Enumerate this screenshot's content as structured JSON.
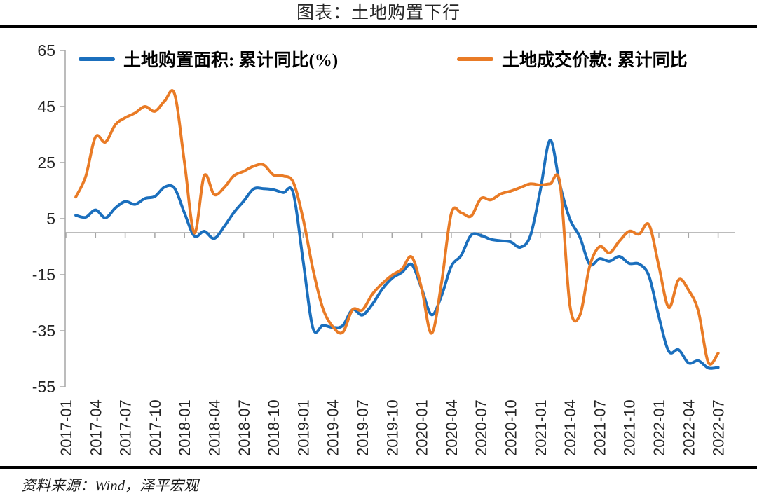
{
  "page": {
    "title": "图表：土地购置下行",
    "source": "资料来源：Wind，泽平宏观"
  },
  "chart_data": {
    "type": "line",
    "title": "图表：土地购置下行",
    "xlabel": "",
    "ylabel": "",
    "ylim": [
      -55,
      65
    ],
    "yticks": [
      65,
      45,
      25,
      5,
      -15,
      -35,
      -55
    ],
    "x_tick_every": 3,
    "grid": "horizontal zero-line only",
    "legend_position": "top-inside",
    "axis_color": "#A6A6A6",
    "text_color": "#262626",
    "x": [
      "2017-01",
      "2017-02",
      "2017-03",
      "2017-04",
      "2017-05",
      "2017-06",
      "2017-07",
      "2017-08",
      "2017-09",
      "2017-10",
      "2017-11",
      "2017-12",
      "2018-01",
      "2018-02",
      "2018-03",
      "2018-04",
      "2018-05",
      "2018-06",
      "2018-07",
      "2018-08",
      "2018-09",
      "2018-10",
      "2018-11",
      "2018-12",
      "2019-01",
      "2019-02",
      "2019-03",
      "2019-04",
      "2019-05",
      "2019-06",
      "2019-07",
      "2019-08",
      "2019-09",
      "2019-10",
      "2019-11",
      "2019-12",
      "2020-01",
      "2020-02",
      "2020-03",
      "2020-04",
      "2020-05",
      "2020-06",
      "2020-07",
      "2020-08",
      "2020-09",
      "2020-10",
      "2020-11",
      "2020-12",
      "2021-01",
      "2021-02",
      "2021-03",
      "2021-04",
      "2021-05",
      "2021-06",
      "2021-07",
      "2021-08",
      "2021-09",
      "2021-10",
      "2021-11",
      "2021-12",
      "2022-01",
      "2022-02",
      "2022-03",
      "2022-04",
      "2022-05",
      "2022-06",
      "2022-07"
    ],
    "series": [
      {
        "name": "土地购置面积: 累计同比(%)",
        "color": "#1B6FBD",
        "values": [
          null,
          6.2,
          5.5,
          8.1,
          5.3,
          8.8,
          11.1,
          10.1,
          12.2,
          12.9,
          16.3,
          15.8,
          7.0,
          -1.2,
          0.5,
          -2.1,
          2.1,
          7.2,
          11.3,
          15.6,
          15.7,
          15.3,
          14.3,
          14.2,
          -10.0,
          -34.1,
          -33.1,
          -33.8,
          -33.2,
          -27.5,
          -29.4,
          -25.6,
          -20.2,
          -16.3,
          -14.2,
          -11.4,
          -20.0,
          -29.3,
          -22.6,
          -12.0,
          -8.1,
          -0.9,
          -1.0,
          -2.4,
          -2.9,
          -3.3,
          -5.2,
          -1.1,
          15.0,
          33.0,
          16.9,
          4.8,
          -1.5,
          -11.3,
          -9.3,
          -10.2,
          -8.5,
          -11.0,
          -11.2,
          -15.5,
          -30.0,
          -42.3,
          -41.8,
          -46.5,
          -45.7,
          -48.3,
          -48.1
        ]
      },
      {
        "name": "土地成交价款: 累计同比",
        "color": "#E97B26",
        "values": [
          null,
          12.7,
          20.0,
          34.2,
          32.3,
          38.5,
          41.0,
          42.7,
          45.0,
          43.3,
          47.0,
          49.4,
          25.0,
          -0.1,
          20.3,
          13.6,
          16.0,
          20.3,
          21.9,
          23.7,
          24.2,
          20.6,
          20.2,
          18.0,
          5.0,
          -13.1,
          -27.0,
          -33.5,
          -35.6,
          -27.5,
          -27.6,
          -22.0,
          -18.2,
          -15.2,
          -13.0,
          -8.7,
          -20.0,
          -35.9,
          -18.1,
          6.9,
          7.1,
          5.9,
          12.2,
          11.7,
          13.8,
          14.8,
          16.1,
          17.4,
          17.0,
          17.4,
          17.5,
          -26.0,
          -29.5,
          -12.0,
          -5.0,
          -7.2,
          -3.0,
          0.5,
          -0.5,
          2.8,
          -12.0,
          -26.7,
          -16.8,
          -20.5,
          -28.1,
          -46.3,
          -43.0
        ]
      }
    ]
  }
}
